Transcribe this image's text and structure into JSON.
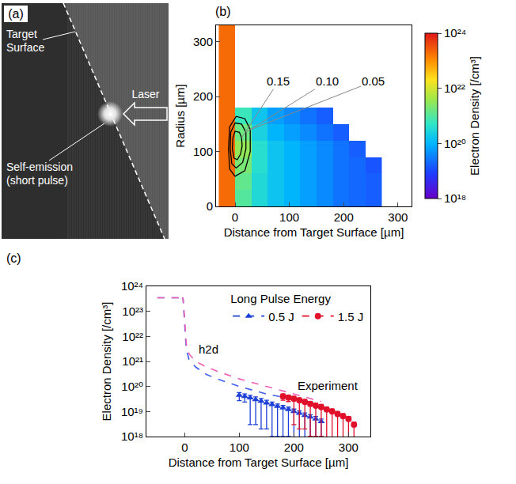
{
  "photo_panel": {
    "letter": "(a)",
    "target_label": "Target Surface",
    "emission_label": "Self-emission (short pulse)",
    "laser_label": "Laser"
  },
  "chart_data": [
    {
      "type": "heatmap",
      "letter": "(b)",
      "x_title": "Distance from Target Surface [µm]",
      "y_title": "Radius [µm]",
      "xlim": [
        -35,
        325
      ],
      "xticks": [
        0,
        100,
        200,
        300
      ],
      "ylim": [
        0,
        330
      ],
      "yticks": [
        0,
        100,
        200,
        300
      ],
      "x_edges": [
        -30,
        0,
        30,
        60,
        90,
        120,
        150,
        180,
        210,
        240,
        270
      ],
      "y_edges": [
        0,
        30,
        60,
        90,
        120,
        150,
        180,
        210,
        240,
        270,
        300,
        330
      ],
      "cells": [
        [
          2e+23,
          1e+21,
          3.2e+20,
          1.6e+20,
          1e+20,
          6.3e+19,
          4e+19,
          2.5e+19,
          2e+19,
          1.6e+19
        ],
        [
          2e+23,
          1.3e+21,
          3.2e+20,
          1.6e+20,
          1e+20,
          6.3e+19,
          4e+19,
          2.5e+19,
          2e+19,
          1.6e+19
        ],
        [
          2e+23,
          2e+21,
          4e+20,
          1.6e+20,
          1e+20,
          6.3e+19,
          4e+19,
          2.5e+19,
          2e+19,
          1.3e+19
        ],
        [
          2e+23,
          3.2e+21,
          4e+20,
          1.6e+20,
          1e+20,
          6.3e+19,
          4e+19,
          2.5e+19,
          1.6e+19,
          null
        ],
        [
          2e+23,
          1.6e+21,
          2.5e+20,
          1e+20,
          6.3e+19,
          4e+19,
          2.5e+19,
          1.6e+19,
          null,
          null
        ],
        [
          2e+23,
          6.3e+20,
          1.6e+20,
          6.3e+19,
          4e+19,
          2.5e+19,
          1.6e+19,
          null,
          null,
          null
        ],
        [
          2e+23,
          null,
          null,
          null,
          null,
          null,
          null,
          null,
          null,
          null
        ],
        [
          2e+23,
          null,
          null,
          null,
          null,
          null,
          null,
          null,
          null,
          null
        ],
        [
          2e+23,
          null,
          null,
          null,
          null,
          null,
          null,
          null,
          null,
          null
        ],
        [
          2e+23,
          null,
          null,
          null,
          null,
          null,
          null,
          null,
          null,
          null
        ],
        [
          2e+23,
          null,
          null,
          null,
          null,
          null,
          null,
          null,
          null,
          null
        ]
      ],
      "colorbar": {
        "title": "Electron Density [/cm³]",
        "log": true,
        "range": [
          1e+18,
          1e+24
        ],
        "ticks": [
          {
            "value": 1e+18,
            "label": "10¹⁸"
          },
          {
            "value": 1e+20,
            "label": "10²⁰"
          },
          {
            "value": 1e+22,
            "label": "10²²"
          },
          {
            "value": 1e+24,
            "label": "10²⁴"
          }
        ]
      },
      "contours": [
        {
          "level": 0.15,
          "label": "0.15",
          "x": [
            12,
            8,
            0,
            -4,
            -5,
            -2,
            4,
            10,
            13,
            12
          ],
          "y": [
            125,
            135,
            137,
            125,
            105,
            88,
            85,
            95,
            110,
            125
          ]
        },
        {
          "level": 0.1,
          "label": "0.10",
          "x": [
            20,
            12,
            0,
            -8,
            -9,
            -6,
            2,
            14,
            20,
            20
          ],
          "y": [
            135,
            150,
            152,
            135,
            105,
            78,
            70,
            80,
            105,
            135
          ]
        },
        {
          "level": 0.05,
          "label": "0.05",
          "x": [
            28,
            18,
            2,
            -10,
            -12,
            -10,
            0,
            18,
            28,
            28
          ],
          "y": [
            140,
            160,
            164,
            145,
            105,
            68,
            55,
            65,
            100,
            140
          ]
        }
      ]
    },
    {
      "type": "scatter",
      "letter": "(c)",
      "log": "y",
      "x_title": "Distance from Target Surface [µm]",
      "y_title": "Electron Density [/cm³]",
      "xlim": [
        -70,
        340
      ],
      "xticks": [
        0,
        100,
        200,
        300
      ],
      "ylim": [
        1e+18,
        1e+24
      ],
      "yticks": [
        {
          "value": 1e+18,
          "label": "10¹⁸"
        },
        {
          "value": 1e+19,
          "label": "10¹⁹"
        },
        {
          "value": 1e+20,
          "label": "10²⁰"
        },
        {
          "value": 1e+21,
          "label": "10²¹"
        },
        {
          "value": 1e+22,
          "label": "10²²"
        },
        {
          "value": 1e+23,
          "label": "10²³"
        },
        {
          "value": 1e+24,
          "label": "10²⁴"
        }
      ],
      "legend": "upper right",
      "legend_title": "Long Pulse Energy",
      "simulation": {
        "label": "h2d",
        "series": [
          {
            "color": "#4060f0",
            "line_style": "dashed",
            "x": [
              -50,
              -20,
              -10,
              -6,
              -3,
              0,
              3,
              8,
              20,
              40,
              60,
              100,
              150,
              200
            ],
            "values": [
              3.5e+23,
              3.5e+23,
              3.5e+23,
              2.5e+23,
              3.5e+23,
              3e+22,
              3e+21,
              1.2e+21,
              6e+20,
              3e+20,
              2e+20,
              1e+20,
              5e+19,
              3e+19
            ]
          },
          {
            "color": "#ee5fb4",
            "line_style": "dashed",
            "x": [
              -50,
              -20,
              -10,
              -6,
              -3,
              0,
              3,
              8,
              20,
              40,
              60,
              100,
              150,
              200,
              250
            ],
            "values": [
              3.5e+23,
              3.5e+23,
              3.5e+23,
              2.5e+23,
              3.5e+23,
              5e+22,
              5e+21,
              2e+21,
              1e+21,
              6e+20,
              4e+20,
              2e+20,
              1e+20,
              5e+19,
              2.5e+19
            ]
          }
        ]
      },
      "experiment": {
        "label": "Experiment",
        "series": [
          {
            "name": "0.5 J",
            "color": "#1c3fd6",
            "marker": "triangle-up",
            "line_style": "dashed",
            "x": [
              100,
              110,
              120,
              130,
              140,
              150,
              160,
              170,
              180,
              190,
              200,
              210,
              220,
              230,
              240,
              250
            ],
            "values": [
              4.5e+19,
              4e+19,
              3.5e+19,
              3e+19,
              2.6e+19,
              2.2e+19,
              1.9e+19,
              1.6e+19,
              1.4e+19,
              1.2e+19,
              1e+19,
              8.5e+18,
              7e+18,
              6e+18,
              5e+18,
              4e+18
            ],
            "error_plus": [
              1.2e+19,
              1e+19,
              9e+18,
              8e+18,
              7e+18,
              6e+18,
              5e+18,
              4e+18,
              3.5e+18,
              3e+18,
              2.5e+18,
              2e+18,
              1.8e+18,
              1.5e+18,
              1.3e+18,
              1e+18
            ],
            "error_minus": [
              1.8e+19,
              1.6e+19,
              3.2e+19,
              2.7e+19,
              2.4e+19,
              2e+19,
              1.8e+19,
              1.5e+19,
              1.3e+19,
              1.1e+19,
              9.5e+18,
              8e+18,
              6.7e+18,
              5.8e+18,
              4.8e+18,
              3.9e+18
            ]
          },
          {
            "name": "1.5 J",
            "color": "#e0102a",
            "marker": "circle",
            "line_style": "dashed",
            "x": [
              180,
              190,
              200,
              210,
              220,
              230,
              240,
              250,
              260,
              270,
              280,
              290,
              300,
              310
            ],
            "values": [
              4e+19,
              3.6e+19,
              3.2e+19,
              2.8e+19,
              2.4e+19,
              2e+19,
              1.7e+19,
              1.5e+19,
              1.2e+19,
              1e+19,
              8e+18,
              6.5e+18,
              5e+18,
              3e+18
            ],
            "error_plus": [
              1e+19,
              9e+18,
              8e+18,
              7e+18,
              6e+18,
              5e+18,
              4.5e+18,
              4e+18,
              3e+18,
              2.5e+18,
              2e+18,
              1.7e+18,
              1.3e+18,
              8e+17
            ],
            "error_minus": [
              1.2e+19,
              1.1e+19,
              2.9e+19,
              2.6e+19,
              2.2e+19,
              1.9e+19,
              1.6e+19,
              1.4e+19,
              1.15e+19,
              9.5e+18,
              7.6e+18,
              6.2e+18,
              4.8e+18,
              2.9e+18
            ]
          }
        ]
      }
    }
  ]
}
